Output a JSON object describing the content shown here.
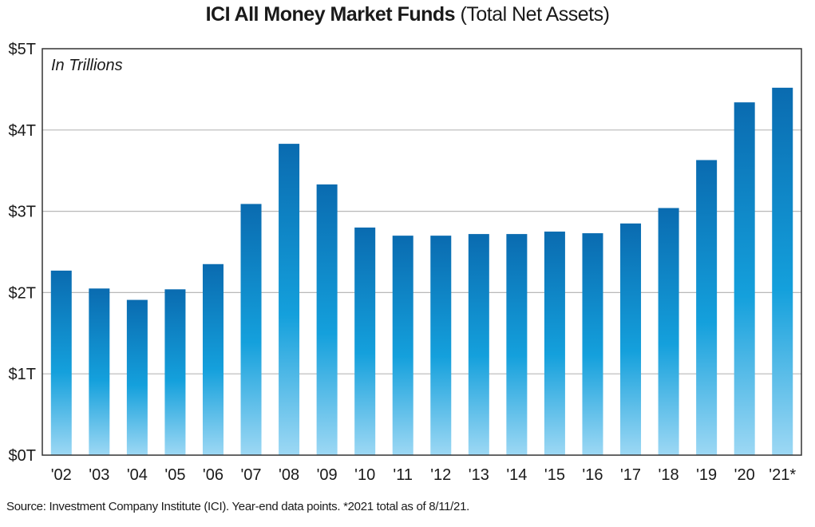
{
  "chart_data": {
    "type": "bar",
    "title": "ICI All Money Market Funds",
    "subtitle": "(Total Net Assets)",
    "annotation": "In Trillions",
    "xlabel": "",
    "ylabel": "",
    "ylim": [
      0,
      5
    ],
    "yticks": [
      {
        "value": 0,
        "label": "$0T"
      },
      {
        "value": 1,
        "label": "$1T"
      },
      {
        "value": 2,
        "label": "$2T"
      },
      {
        "value": 3,
        "label": "$3T"
      },
      {
        "value": 4,
        "label": "$4T"
      },
      {
        "value": 5,
        "label": "$5T"
      }
    ],
    "categories": [
      "'02",
      "'03",
      "'04",
      "'05",
      "'06",
      "'07",
      "'08",
      "'09",
      "'10",
      "'11",
      "'12",
      "'13",
      "'14",
      "'15",
      "'16",
      "'17",
      "'18",
      "'19",
      "'20",
      "'21*"
    ],
    "values": [
      2.27,
      2.05,
      1.91,
      2.04,
      2.35,
      3.09,
      3.83,
      3.33,
      2.8,
      2.7,
      2.7,
      2.72,
      2.72,
      2.75,
      2.73,
      2.85,
      3.04,
      3.63,
      4.34,
      4.52
    ],
    "grid": true,
    "colors": {
      "bar_top": "#0a6bb0",
      "bar_mid": "#14a0dc",
      "bar_bottom": "#9dd8f4",
      "grid": "#b8b8b8",
      "frame": "#333333"
    }
  },
  "footer": {
    "source": "Source: Investment Company Institute (ICI). Year-end data points. *2021 total as of 8/11/21."
  }
}
